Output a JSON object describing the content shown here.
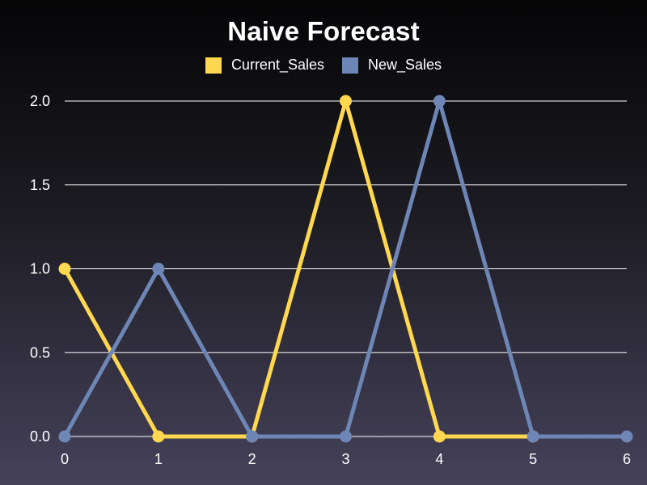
{
  "chart_data": {
    "type": "line",
    "title": "Naive Forecast",
    "xlabel": "",
    "ylabel": "",
    "x": [
      0,
      1,
      2,
      3,
      4,
      5,
      6
    ],
    "xlim": [
      0,
      6
    ],
    "ylim": [
      0,
      2
    ],
    "xticks": [
      "0",
      "1",
      "2",
      "3",
      "4",
      "5",
      "6"
    ],
    "yticks": [
      "0.0",
      "0.5",
      "1.0",
      "1.5",
      "2.0"
    ],
    "grid": "horizontal",
    "legend_position": "top-center",
    "series": [
      {
        "name": "Current_Sales",
        "color": "#ffd84f",
        "x": [
          0,
          1,
          2,
          3,
          4,
          5
        ],
        "values": [
          1,
          0,
          0,
          2,
          0,
          0
        ]
      },
      {
        "name": "New_Sales",
        "color": "#6d86b5",
        "x": [
          0,
          1,
          2,
          3,
          4,
          5,
          6
        ],
        "values": [
          0,
          1,
          0,
          0,
          2,
          0,
          0
        ]
      }
    ]
  }
}
